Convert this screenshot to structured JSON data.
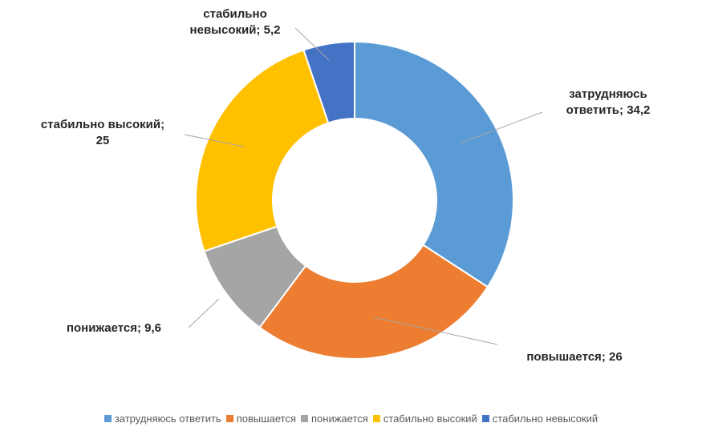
{
  "chart_data": {
    "type": "pie",
    "donut": true,
    "series": [
      {
        "name": "затрудняюсь ответить",
        "value": 34.2,
        "label_lines": [
          "затрудняюсь",
          "ответить; 34,2"
        ],
        "color": "#5B9BD5"
      },
      {
        "name": "повышается",
        "value": 26,
        "label_lines": [
          "повышается; 26"
        ],
        "color": "#ED7D31"
      },
      {
        "name": "понижается",
        "value": 9.6,
        "label_lines": [
          "понижается; 9,6"
        ],
        "color": "#A5A5A5"
      },
      {
        "name": "стабильно высокий",
        "value": 25,
        "label_lines": [
          "стабильно высокий;",
          "25"
        ],
        "color": "#FFC000"
      },
      {
        "name": "стабильно невысокий",
        "value": 5.2,
        "label_lines": [
          "стабильно",
          "невысокий; 5,2"
        ],
        "color": "#4472C4"
      }
    ],
    "legend": "bottom"
  }
}
